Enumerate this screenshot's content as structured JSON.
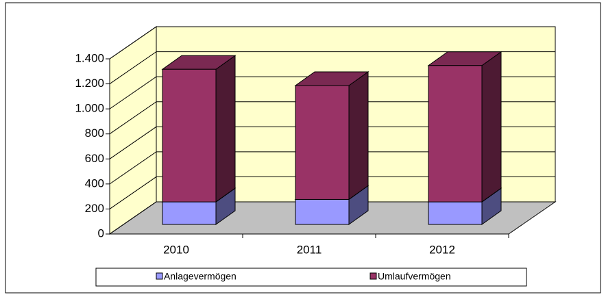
{
  "chart_data": {
    "type": "bar3d_stacked",
    "categories": [
      "2010",
      "2011",
      "2012"
    ],
    "series": [
      {
        "name": "Anlagevermögen",
        "color": "#9999ff",
        "values": [
          180,
          200,
          180
        ]
      },
      {
        "name": "Umlaufvermögen",
        "color": "#993366",
        "values": [
          1060,
          910,
          1090
        ]
      }
    ],
    "ylim": [
      0,
      1400
    ],
    "yticks": [
      0,
      200,
      400,
      600,
      800,
      {
        "value": 1000,
        "label": "1.000"
      },
      {
        "value": 1200,
        "label": "1.200"
      },
      {
        "value": 1400,
        "label": "1.400"
      }
    ],
    "grid": true,
    "legend": "bottom"
  }
}
